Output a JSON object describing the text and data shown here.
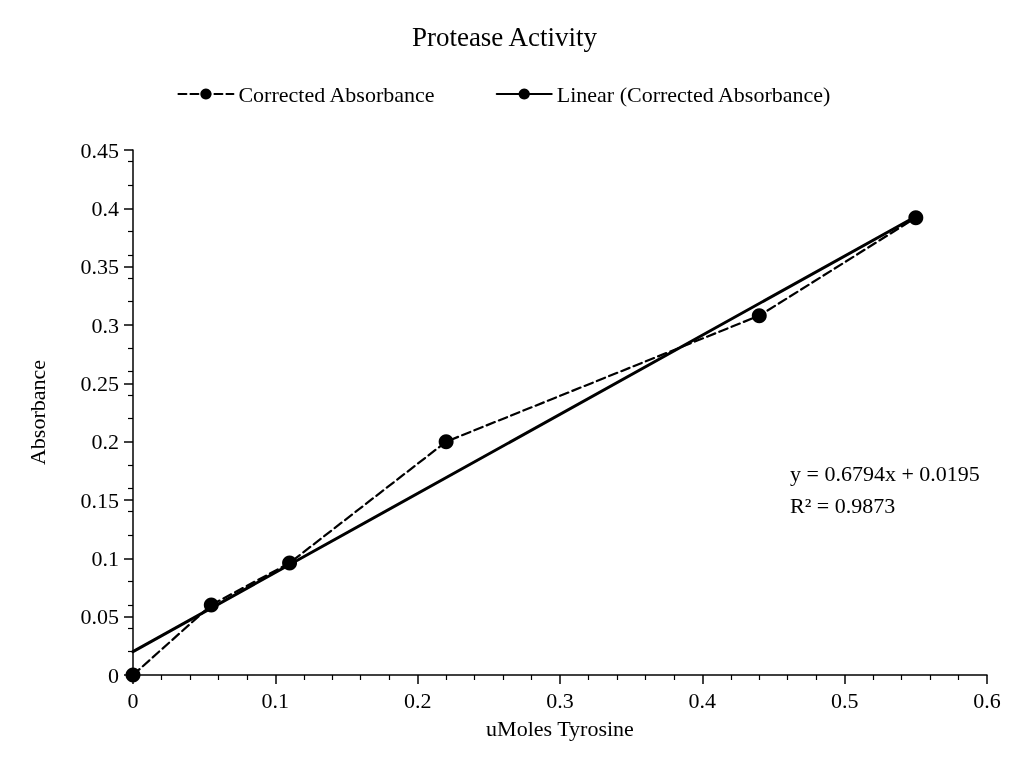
{
  "chart_data": {
    "type": "line",
    "title": "Protease Activity",
    "xlabel": "uMoles Tyrosine",
    "ylabel": "Absorbance",
    "series": [
      {
        "name": "Corrected Absorbance",
        "color": "#000000",
        "x": [
          0,
          0.055,
          0.11,
          0.22,
          0.44,
          0.55
        ],
        "values": [
          0,
          0.06,
          0.096,
          0.2,
          0.308,
          0.392
        ],
        "marker": "circle",
        "line_style": "dashed"
      },
      {
        "name": "Linear (Corrected Absorbance)",
        "color": "#000000",
        "x": [
          0,
          0.55
        ],
        "values": [
          0.02,
          0.393
        ],
        "marker": "none",
        "line_style": "solid"
      }
    ],
    "xlim": [
      0,
      0.6
    ],
    "xticks": [
      0,
      0.1,
      0.2,
      0.3,
      0.4,
      0.5,
      0.6
    ],
    "ylim": [
      0,
      0.45
    ],
    "yticks": [
      0,
      0.05,
      0.1,
      0.15,
      0.2,
      0.25,
      0.3,
      0.35,
      0.4,
      0.45
    ],
    "annotations": [
      "y = 0.6794x + 0.0195",
      "R² = 0.9873"
    ],
    "grid": false,
    "legend": "top"
  }
}
